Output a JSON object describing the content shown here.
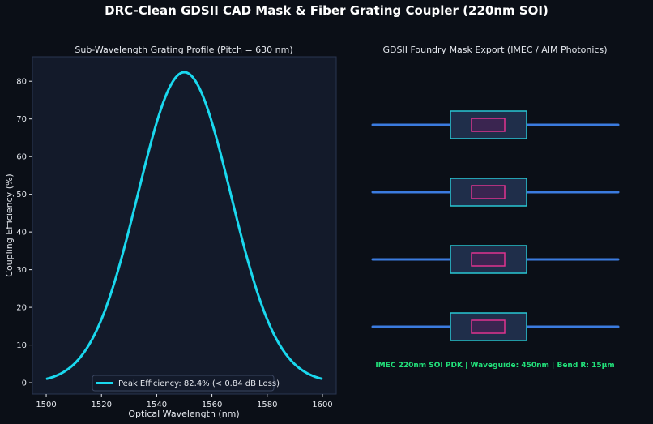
{
  "figure": {
    "title": "DRC-Clean GDSII CAD Mask & Fiber Grating Coupler (220nm SOI)"
  },
  "colors": {
    "background": "#0b0f17",
    "plot_background": "#131a2a",
    "curve": "#1ad8ee",
    "waveguide": "#3b7bdf",
    "grating_box": "#29c7d4",
    "grating_fill": "#1f2e4a",
    "taper_box": "#e0338f",
    "taper_fill": "#3a2550",
    "footer": "#22e07a"
  },
  "chart_data": {
    "type": "line",
    "title": "Sub-Wavelength Grating Profile (Pitch = 630 nm)",
    "xlabel": "Optical Wavelength (nm)",
    "ylabel": "Coupling Efficiency (%)",
    "xlim": [
      1495,
      1605
    ],
    "ylim": [
      -3,
      86.5
    ],
    "xticks": [
      1500,
      1520,
      1540,
      1560,
      1580,
      1600
    ],
    "yticks": [
      0,
      10,
      20,
      30,
      40,
      50,
      60,
      70,
      80
    ],
    "grid": false,
    "legend_position": "bottom-center",
    "series": [
      {
        "name": "Peak Efficiency: 82.4% (< 0.84 dB Loss)",
        "x": [
          1500,
          1505,
          1510,
          1515,
          1520,
          1525,
          1530,
          1535,
          1540,
          1545,
          1550,
          1555,
          1560,
          1565,
          1570,
          1575,
          1580,
          1585,
          1590,
          1595,
          1600
        ],
        "y": [
          1.0,
          2.2,
          4.4,
          8.3,
          14.4,
          23.0,
          33.8,
          46.2,
          58.9,
          70.6,
          82.4,
          70.6,
          58.9,
          46.2,
          33.8,
          23.0,
          14.4,
          8.3,
          4.4,
          2.2,
          1.0
        ]
      }
    ]
  },
  "mask_panel": {
    "title": "GDSII Foundry Mask Export (IMEC / AIM Photonics)",
    "waveguide_count": 4,
    "footer": "IMEC 220nm SOI PDK | Waveguide: 450nm | Bend R: 15µm"
  }
}
